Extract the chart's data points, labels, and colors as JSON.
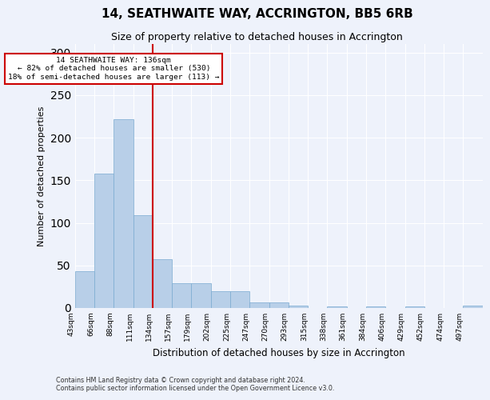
{
  "title": "14, SEATHWAITE WAY, ACCRINGTON, BB5 6RB",
  "subtitle": "Size of property relative to detached houses in Accrington",
  "xlabel": "Distribution of detached houses by size in Accrington",
  "ylabel": "Number of detached properties",
  "bar_color": "#b8cfe8",
  "bar_edge_color": "#7aaad0",
  "background_color": "#eef2fb",
  "x_labels": [
    "43sqm",
    "66sqm",
    "88sqm",
    "111sqm",
    "134sqm",
    "157sqm",
    "179sqm",
    "202sqm",
    "225sqm",
    "247sqm",
    "270sqm",
    "293sqm",
    "315sqm",
    "338sqm",
    "361sqm",
    "384sqm",
    "406sqm",
    "429sqm",
    "452sqm",
    "474sqm",
    "497sqm"
  ],
  "bar_heights": [
    43,
    158,
    222,
    109,
    57,
    29,
    29,
    20,
    20,
    7,
    7,
    3,
    0,
    2,
    0,
    2,
    0,
    2,
    0,
    0,
    3
  ],
  "red_line_after_bar": 4,
  "annotation_title": "14 SEATHWAITE WAY: 136sqm",
  "annotation_line1": "← 82% of detached houses are smaller (530)",
  "annotation_line2": "18% of semi-detached houses are larger (113) →",
  "annotation_box_color": "#ffffff",
  "annotation_border_color": "#cc0000",
  "red_line_color": "#cc0000",
  "ylim": [
    0,
    310
  ],
  "yticks": [
    0,
    50,
    100,
    150,
    200,
    250,
    300
  ],
  "footer_line1": "Contains HM Land Registry data © Crown copyright and database right 2024.",
  "footer_line2": "Contains public sector information licensed under the Open Government Licence v3.0."
}
